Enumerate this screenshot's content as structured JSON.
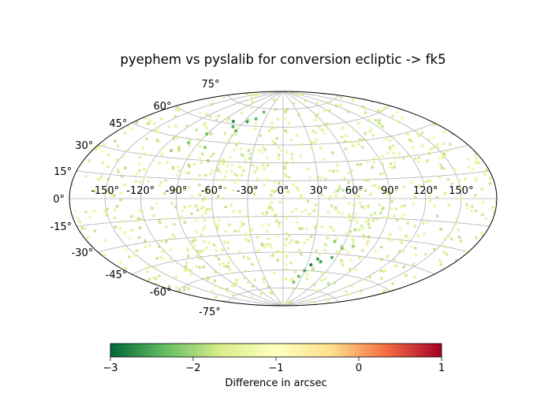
{
  "chart_data": {
    "type": "scatter",
    "projection": "aitoff",
    "title": "pyephem vs pyslalib for conversion ecliptic -> fk5",
    "grid": true,
    "x_tick_labels": [
      "-150°",
      "-120°",
      "-90°",
      "-60°",
      "-30°",
      "0°",
      "30°",
      "60°",
      "90°",
      "120°",
      "150°"
    ],
    "x_tick_values": [
      -150,
      -120,
      -90,
      -60,
      -30,
      0,
      30,
      60,
      90,
      120,
      150
    ],
    "y_tick_labels": [
      "75°",
      "60°",
      "45°",
      "30°",
      "15°",
      "0°",
      "-15°",
      "-30°",
      "-45°",
      "-60°",
      "-75°"
    ],
    "y_tick_values": [
      75,
      60,
      45,
      30,
      15,
      0,
      -15,
      -30,
      -45,
      -60,
      -75
    ],
    "xlim": [
      -180,
      180
    ],
    "ylim": [
      -90,
      90
    ],
    "colorbar": {
      "label": "Difference in arcsec",
      "colormap": "RdYlGn_r",
      "range": [
        -3,
        1
      ],
      "tick_labels": [
        "−3",
        "−2",
        "−1",
        "0",
        "1"
      ],
      "tick_values": [
        -3,
        -2,
        -1,
        0,
        1
      ],
      "colors": [
        "#006837",
        "#66bd63",
        "#d9ef8b",
        "#ffffbf",
        "#fee08b",
        "#f46d43",
        "#a50026"
      ]
    },
    "points": [
      {
        "lon": -75,
        "lat": 62,
        "value": -2.7
      },
      {
        "lon": -68,
        "lat": 58,
        "value": -2.5
      },
      {
        "lon": -60,
        "lat": 55,
        "value": -2.4
      },
      {
        "lon": -90,
        "lat": 50,
        "value": -2.3
      },
      {
        "lon": -100,
        "lat": 42,
        "value": -2.2
      },
      {
        "lon": -80,
        "lat": 40,
        "value": -2.1
      },
      {
        "lon": -55,
        "lat": 63,
        "value": -2.6
      },
      {
        "lon": -45,
        "lat": 66,
        "value": -2.4
      },
      {
        "lon": -40,
        "lat": 72,
        "value": -2.3
      },
      {
        "lon": -110,
        "lat": 35,
        "value": -2.0
      },
      {
        "lon": -70,
        "lat": 30,
        "value": -2.0
      },
      {
        "lon": -85,
        "lat": 25,
        "value": -1.9
      },
      {
        "lon": 35,
        "lat": -55,
        "value": -2.8
      },
      {
        "lon": 40,
        "lat": -50,
        "value": -2.6
      },
      {
        "lon": 45,
        "lat": -52,
        "value": -2.5
      },
      {
        "lon": 55,
        "lat": -48,
        "value": -2.4
      },
      {
        "lon": 30,
        "lat": -60,
        "value": -2.5
      },
      {
        "lon": 60,
        "lat": -40,
        "value": -2.2
      },
      {
        "lon": 50,
        "lat": -35,
        "value": -2.1
      },
      {
        "lon": 70,
        "lat": -38,
        "value": -2.0
      },
      {
        "lon": 25,
        "lat": -65,
        "value": -2.3
      },
      {
        "lon": 20,
        "lat": -70,
        "value": -2.2
      },
      {
        "lon": 80,
        "lat": -30,
        "value": -1.9
      },
      {
        "lon": 65,
        "lat": -25,
        "value": -1.9
      },
      {
        "lon": 10,
        "lat": 75,
        "value": -1.8
      },
      {
        "lon": 30,
        "lat": 70,
        "value": -1.8
      },
      {
        "lon": 60,
        "lat": 60,
        "value": -1.8
      },
      {
        "lon": -140,
        "lat": 20,
        "value": -1.8
      },
      {
        "lon": 140,
        "lat": -20,
        "value": -1.8
      }
    ],
    "background_points": {
      "count": 950,
      "value_range": [
        -1.9,
        -1.3
      ],
      "seed": 7
    }
  }
}
